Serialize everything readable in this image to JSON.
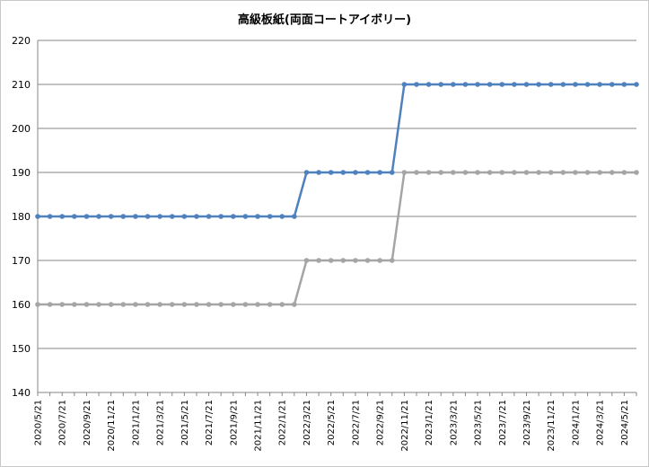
{
  "chart_data": {
    "type": "line",
    "title": "高級板紙(両面コートアイボリー)",
    "xlabel": "",
    "ylabel": "",
    "ylim": [
      140,
      220
    ],
    "y_ticks": [
      140,
      150,
      160,
      170,
      180,
      190,
      200,
      210,
      220
    ],
    "grid": true,
    "legend": "none",
    "x": [
      "2020/5",
      "2020/6",
      "2020/7",
      "2020/8",
      "2020/9",
      "2020/10",
      "2020/11",
      "2020/12",
      "2021/1",
      "2021/2",
      "2021/3",
      "2021/4",
      "2021/5",
      "2021/6",
      "2021/7",
      "2021/8",
      "2021/9",
      "2021/10",
      "2021/11",
      "2021/12",
      "2022/1",
      "2022/2",
      "2022/3",
      "2022/4",
      "2022/5",
      "2022/6",
      "2022/7",
      "2022/8",
      "2022/9",
      "2022/10",
      "2022/11",
      "2022/12",
      "2023/1",
      "2023/2",
      "2023/3",
      "2023/4",
      "2023/5",
      "2023/6",
      "2023/7",
      "2023/8",
      "2023/9",
      "2023/10",
      "2023/11",
      "2023/12",
      "2024/1",
      "2024/2",
      "2024/3",
      "2024/4",
      "2024/5",
      "2024/6"
    ],
    "x_tick_labels": [
      "2020/5/21",
      "2020/7/21",
      "2020/9/21",
      "2020/11/21",
      "2021/1/21",
      "2021/3/21",
      "2021/5/21",
      "2021/7/21",
      "2021/9/21",
      "2021/11/21",
      "2022/1/21",
      "2022/3/21",
      "2022/5/21",
      "2022/7/21",
      "2022/9/21",
      "2022/11/21",
      "2023/1/21",
      "2023/3/21",
      "2023/5/21",
      "2023/7/21",
      "2023/9/21",
      "2023/11/21",
      "2024/1/21",
      "2024/3/21",
      "2024/5/21"
    ],
    "series": [
      {
        "color": "#4f81bd",
        "values": [
          180,
          180,
          180,
          180,
          180,
          180,
          180,
          180,
          180,
          180,
          180,
          180,
          180,
          180,
          180,
          180,
          180,
          180,
          180,
          180,
          180,
          180,
          190,
          190,
          190,
          190,
          190,
          190,
          190,
          190,
          210,
          210,
          210,
          210,
          210,
          210,
          210,
          210,
          210,
          210,
          210,
          210,
          210,
          210,
          210,
          210,
          210,
          210,
          210,
          210
        ]
      },
      {
        "color": "#a5a5a5",
        "values": [
          160,
          160,
          160,
          160,
          160,
          160,
          160,
          160,
          160,
          160,
          160,
          160,
          160,
          160,
          160,
          160,
          160,
          160,
          160,
          160,
          160,
          160,
          170,
          170,
          170,
          170,
          170,
          170,
          170,
          170,
          190,
          190,
          190,
          190,
          190,
          190,
          190,
          190,
          190,
          190,
          190,
          190,
          190,
          190,
          190,
          190,
          190,
          190,
          190,
          190
        ]
      }
    ]
  }
}
